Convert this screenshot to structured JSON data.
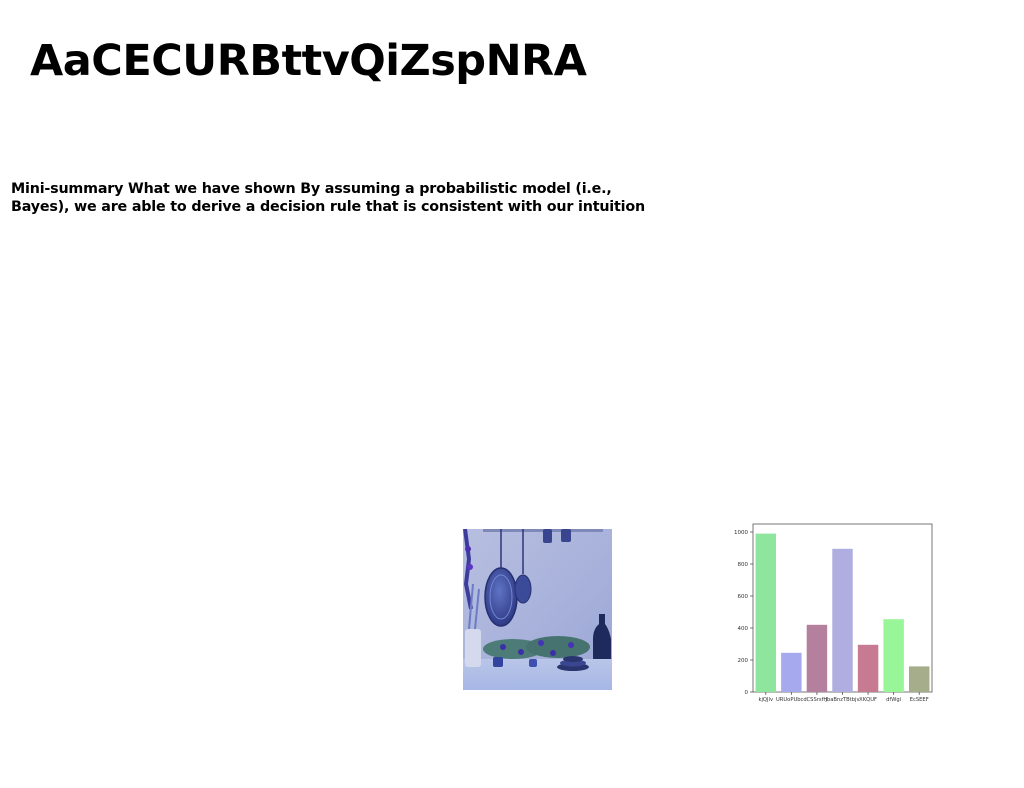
{
  "document": {
    "title": "AaCECURBttvQiZspNRA",
    "summary": "Mini-summary What we have shown By assuming a probabilistic model (i.e., Bayes), we are able to derive a decision rule that is consistent with our intuition"
  },
  "photo": {
    "subject": "kitchen-wall-with-hanging-pans-and-plants",
    "tint": "#8c9ad8"
  },
  "chart_data": {
    "type": "bar",
    "categories": [
      "kjQJlv",
      "URUoPUbcd",
      "CSSrsfH",
      "jbaBnzTBtbjv",
      "XKQUF",
      "dfWgi",
      "EcSEEF"
    ],
    "values": [
      990,
      245,
      420,
      895,
      295,
      455,
      160
    ],
    "colors": [
      "#8ee69e",
      "#a7a9ee",
      "#b5809d",
      "#b0aee0",
      "#c77b92",
      "#98f598",
      "#a5ad8a"
    ],
    "yticks": [
      0,
      200,
      400,
      600,
      800,
      1000
    ],
    "ylim": [
      0,
      1050
    ],
    "title": "",
    "xlabel": "",
    "ylabel": "",
    "grid": false
  }
}
